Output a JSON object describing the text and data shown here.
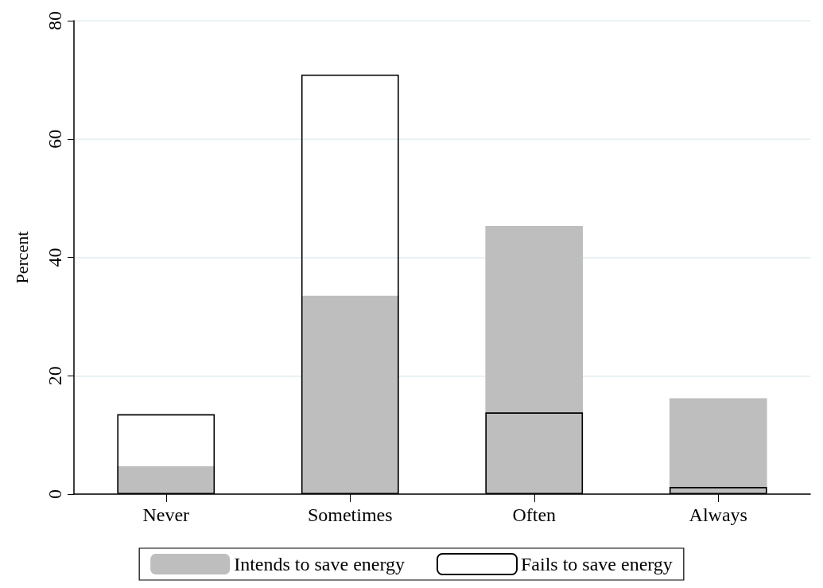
{
  "chart_data": {
    "type": "bar",
    "ylabel": "Percent",
    "categories": [
      "Never",
      "Sometimes",
      "Often",
      "Always"
    ],
    "series": [
      {
        "name": "Intends to save energy",
        "color": "#bebebe",
        "values": [
          4.7,
          33.5,
          45.3,
          16.2
        ]
      },
      {
        "name": "Fails to save energy",
        "color": "#000000",
        "values": [
          13.5,
          70.9,
          13.8,
          1.2
        ]
      }
    ],
    "stacked": false,
    "ylim": [
      0,
      80
    ],
    "yticks": [
      0,
      20,
      40,
      60,
      80
    ],
    "grid": "y",
    "legend": "bottom"
  }
}
